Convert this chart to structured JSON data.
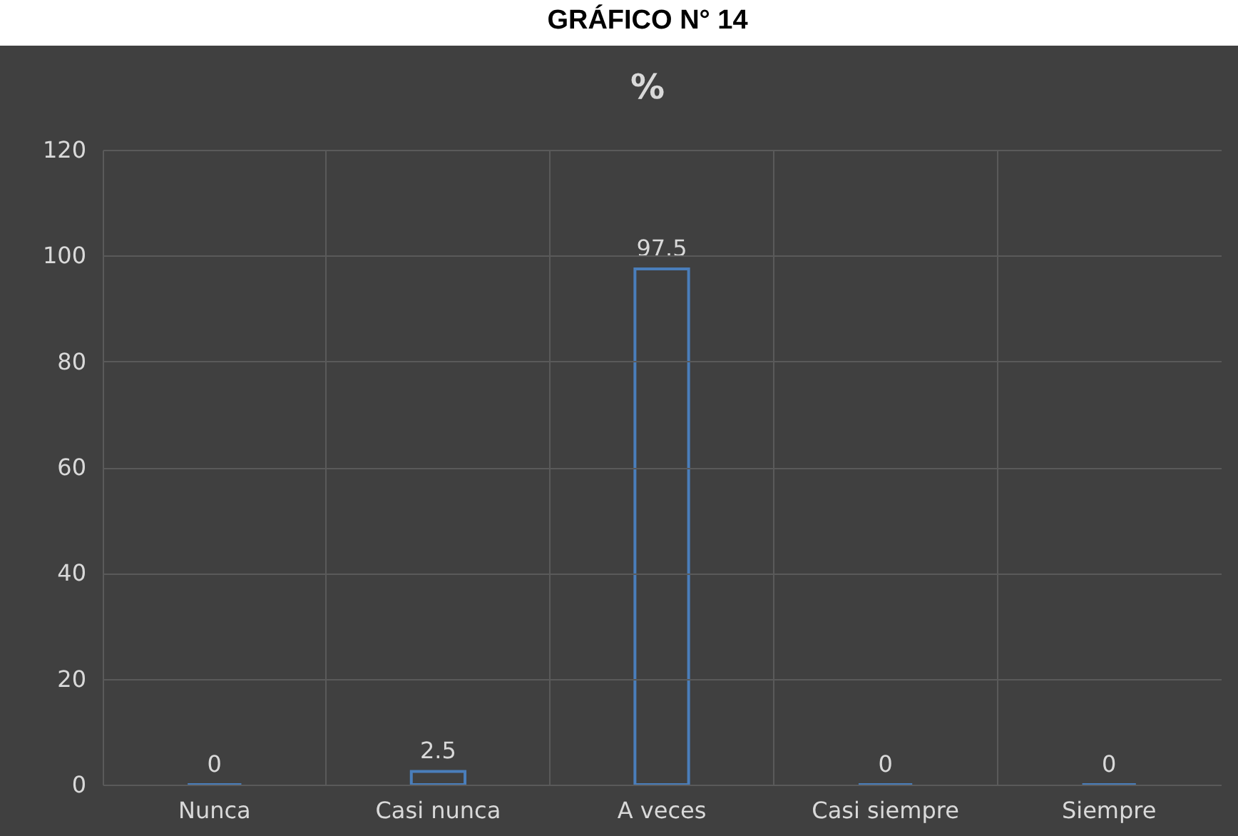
{
  "chart_data": {
    "type": "bar",
    "title": "GRÁFICO N° 14",
    "subtitle": "%",
    "categories": [
      "Nunca",
      "Casi nunca",
      "A veces",
      "Casi siempre",
      "Siempre"
    ],
    "series": [
      {
        "color": "#4a7ebb",
        "values": [
          0,
          2.5,
          97.5,
          0,
          0
        ]
      }
    ],
    "ylim": [
      0,
      120
    ],
    "yticks": [
      0,
      20,
      40,
      60,
      80,
      100,
      120
    ],
    "grid": true,
    "data_labels": true
  }
}
